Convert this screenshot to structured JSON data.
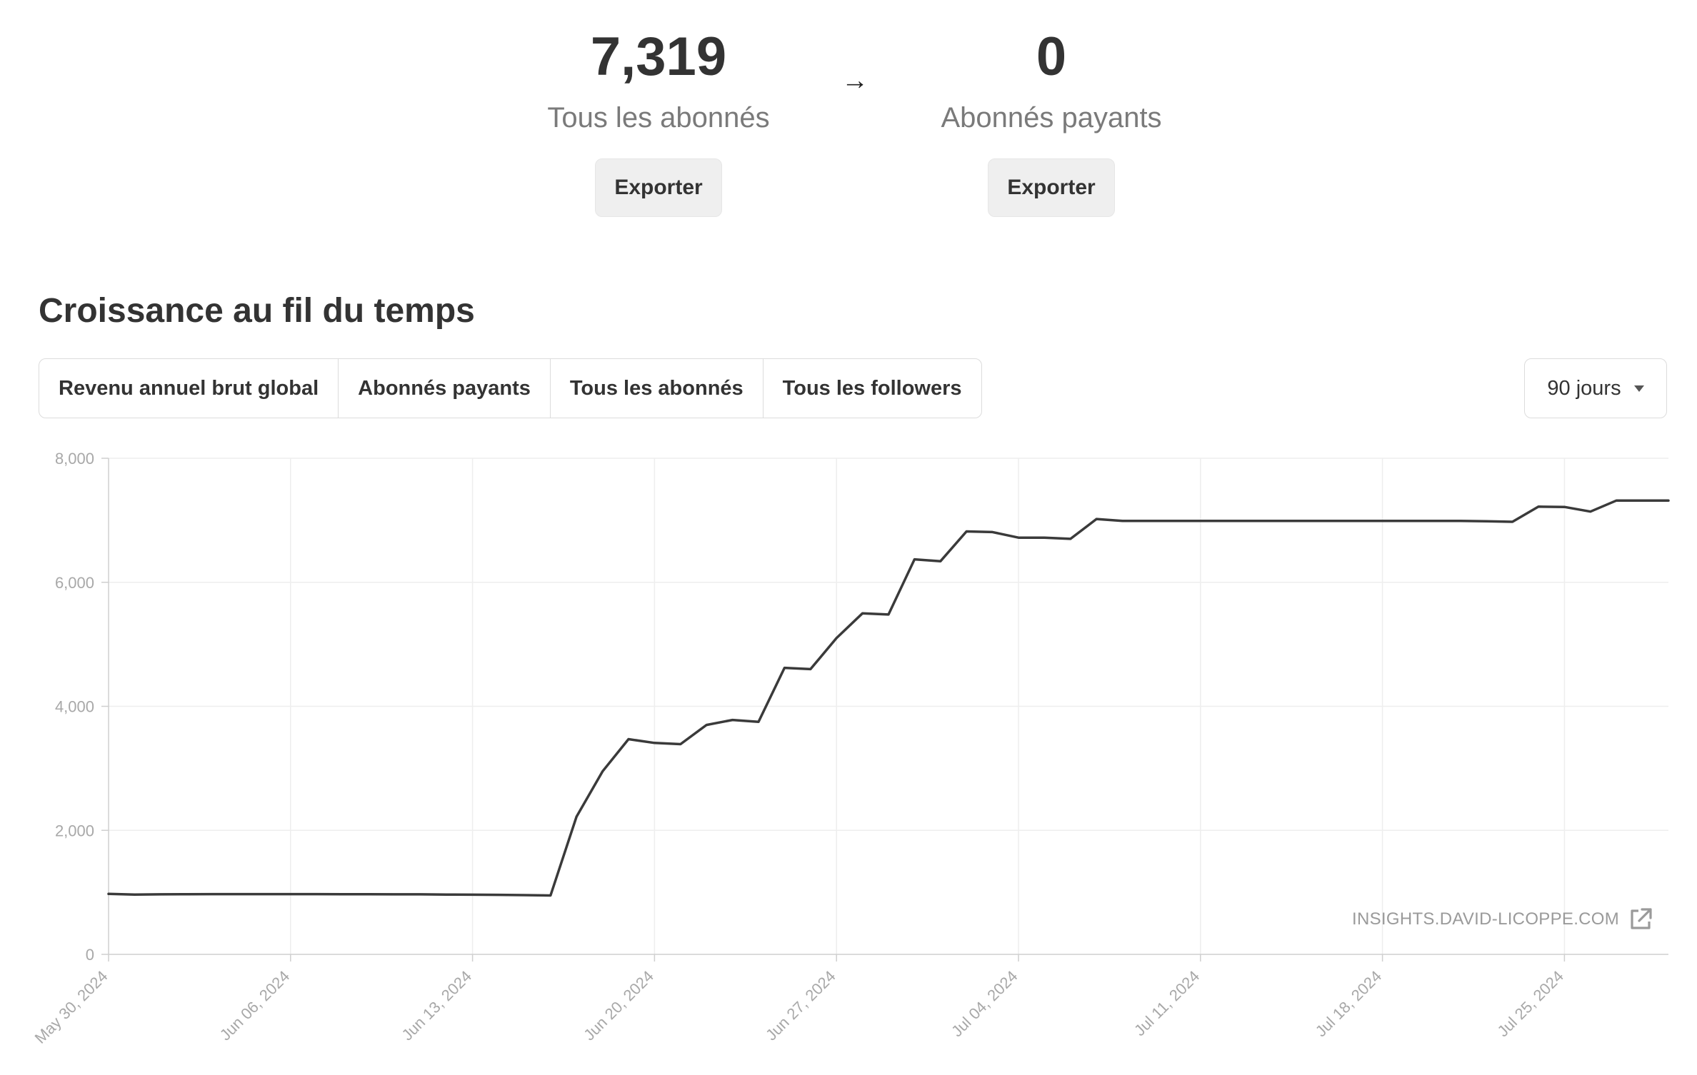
{
  "stats": [
    {
      "value": "7,319",
      "label": "Tous les abonnés",
      "export_label": "Exporter"
    },
    {
      "value": "0",
      "label": "Abonnés payants",
      "export_label": "Exporter"
    }
  ],
  "arrow_icon": "arrow-right-icon",
  "section_title": "Croissance au fil du temps",
  "tabs": [
    {
      "label": "Revenu annuel brut global",
      "active": false
    },
    {
      "label": "Abonnés payants",
      "active": false
    },
    {
      "label": "Tous les abonnés",
      "active": true
    },
    {
      "label": "Tous les followers",
      "active": false
    }
  ],
  "range_select": {
    "value": "90 jours",
    "icon": "caret-down-icon"
  },
  "watermark": {
    "text": "INSIGHTS.DAVID-LICOPPE.COM",
    "icon": "external-link-icon"
  },
  "colors": {
    "line": "#3a3a3a",
    "grid": "#eeeeee",
    "axis": "#cfcfcf",
    "tick_text": "#a8a8a8"
  },
  "chart_data": {
    "type": "line",
    "xlabel": "",
    "ylabel": "",
    "ylim": [
      0,
      8000
    ],
    "yticks": [
      0,
      2000,
      4000,
      6000,
      8000
    ],
    "ytick_labels": [
      "0",
      "2,000",
      "4,000",
      "6,000",
      "8,000"
    ],
    "xlim": [
      "2024-05-30",
      "2024-07-29"
    ],
    "xticks": [
      "2024-05-30",
      "2024-06-06",
      "2024-06-13",
      "2024-06-20",
      "2024-06-27",
      "2024-07-04",
      "2024-07-11",
      "2024-07-18",
      "2024-07-25"
    ],
    "xtick_labels": [
      "May 30, 2024",
      "Jun 06, 2024",
      "Jun 13, 2024",
      "Jun 20, 2024",
      "Jun 27, 2024",
      "Jul 04, 2024",
      "Jul 11, 2024",
      "Jul 18, 2024",
      "Jul 25, 2024"
    ],
    "grid": true,
    "series": [
      {
        "x": [
          "2024-05-30",
          "2024-05-31",
          "2024-06-01",
          "2024-06-02",
          "2024-06-03",
          "2024-06-04",
          "2024-06-05",
          "2024-06-06",
          "2024-06-07",
          "2024-06-08",
          "2024-06-09",
          "2024-06-10",
          "2024-06-11",
          "2024-06-12",
          "2024-06-13",
          "2024-06-14",
          "2024-06-15",
          "2024-06-16",
          "2024-06-17",
          "2024-06-18",
          "2024-06-19",
          "2024-06-20",
          "2024-06-21",
          "2024-06-22",
          "2024-06-23",
          "2024-06-24",
          "2024-06-25",
          "2024-06-26",
          "2024-06-27",
          "2024-06-28",
          "2024-06-29",
          "2024-06-30",
          "2024-07-01",
          "2024-07-02",
          "2024-07-03",
          "2024-07-04",
          "2024-07-05",
          "2024-07-06",
          "2024-07-07",
          "2024-07-08",
          "2024-07-09",
          "2024-07-10",
          "2024-07-11",
          "2024-07-12",
          "2024-07-13",
          "2024-07-14",
          "2024-07-15",
          "2024-07-16",
          "2024-07-17",
          "2024-07-18",
          "2024-07-19",
          "2024-07-20",
          "2024-07-21",
          "2024-07-22",
          "2024-07-23",
          "2024-07-24",
          "2024-07-25",
          "2024-07-26",
          "2024-07-27",
          "2024-07-28",
          "2024-07-29"
        ],
        "values": [
          975,
          965,
          968,
          970,
          972,
          972,
          972,
          972,
          972,
          970,
          970,
          968,
          968,
          965,
          962,
          960,
          955,
          950,
          2220,
          2950,
          3470,
          3410,
          3390,
          3700,
          3780,
          3750,
          4620,
          4600,
          5100,
          5500,
          5480,
          6370,
          6340,
          6820,
          6810,
          6720,
          6720,
          6700,
          7020,
          6990,
          6990,
          6990,
          6990,
          6990,
          6990,
          6990,
          6990,
          6990,
          6990,
          6990,
          6990,
          6990,
          6990,
          6985,
          6975,
          7220,
          7215,
          7140,
          7319,
          7319,
          7319
        ]
      }
    ]
  }
}
